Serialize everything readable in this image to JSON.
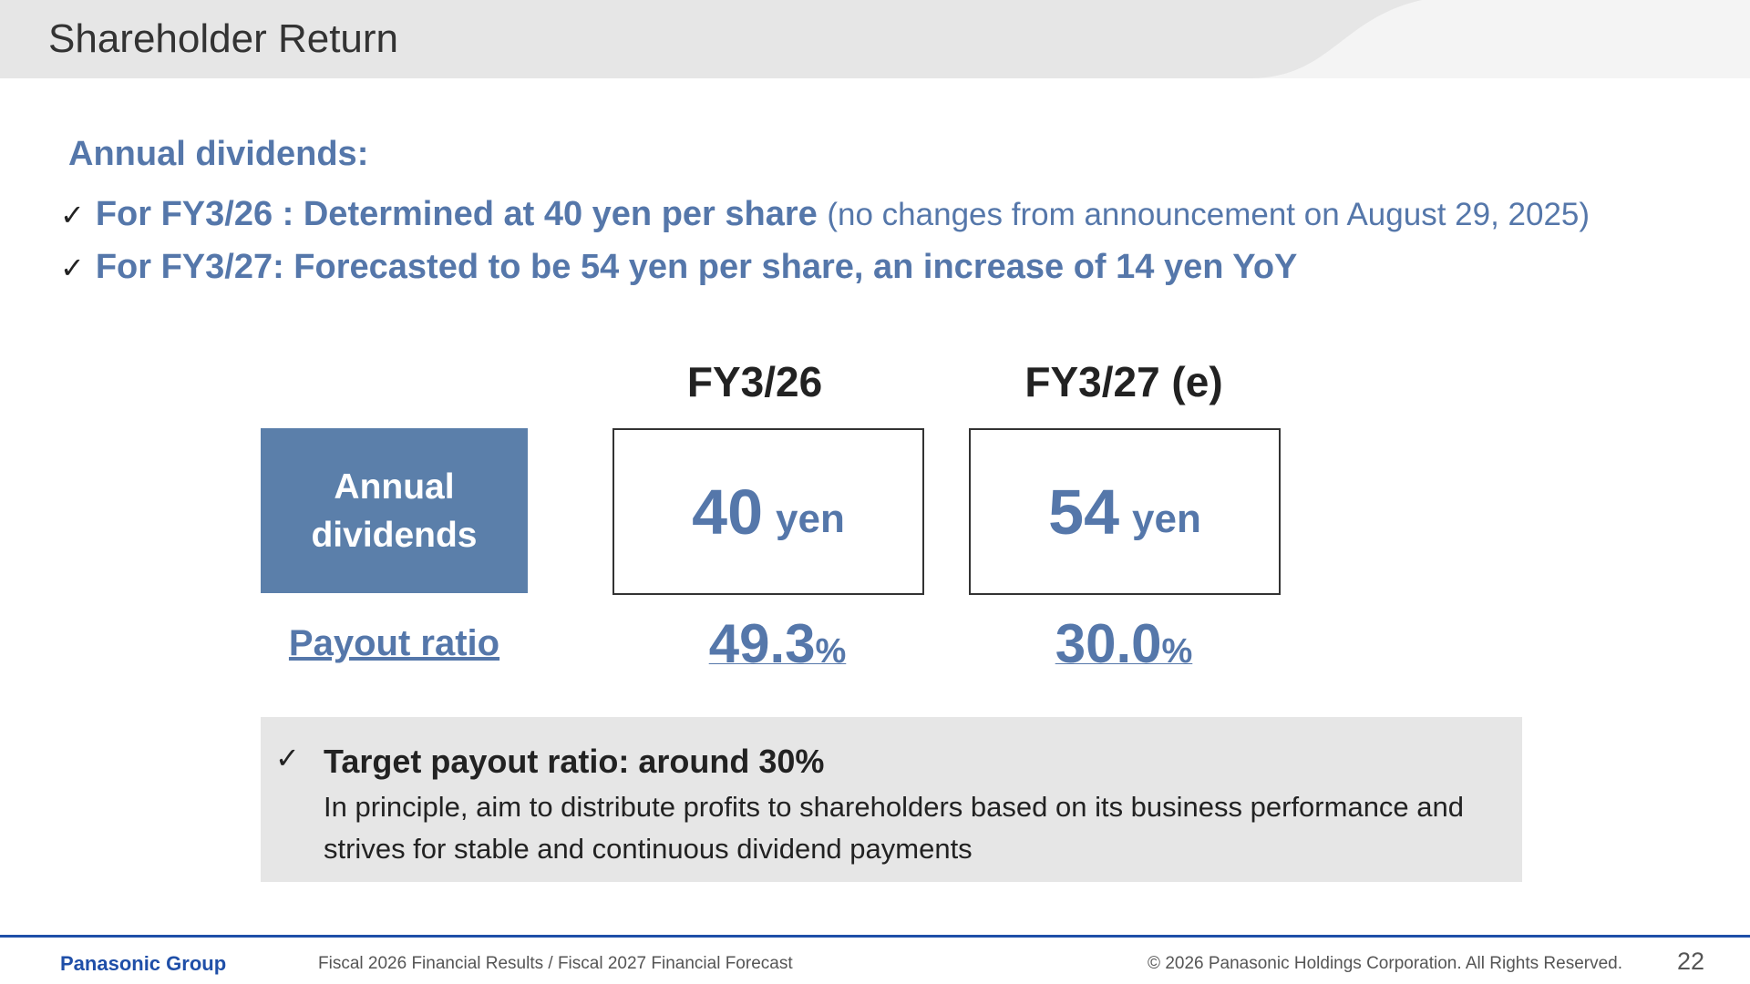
{
  "header": {
    "title": "Shareholder Return"
  },
  "section": {
    "subtitle": "Annual dividends:",
    "bullets": [
      {
        "check": "✓",
        "bold": "For FY3/26 : Determined at 40 yen per share",
        "note": "(no changes from announcement on August 29, 2025)"
      },
      {
        "check": "✓",
        "bold": "For FY3/27:  Forecasted to be 54 yen per share, an increase of 14 yen YoY",
        "note": ""
      }
    ]
  },
  "table": {
    "columns": [
      "FY3/26",
      "FY3/27 (e)"
    ],
    "row_label_line1": "Annual",
    "row_label_line2": "dividends",
    "dividends": [
      {
        "value": "40",
        "unit": "yen"
      },
      {
        "value": "54",
        "unit": "yen"
      }
    ],
    "payout_label": "Payout ratio",
    "payout": [
      {
        "value": "49.3",
        "unit": "%"
      },
      {
        "value": "30.0",
        "unit": "%"
      }
    ]
  },
  "policy": {
    "check": "✓",
    "title": "Target payout ratio: around 30%",
    "text": "In principle, aim to distribute profits to shareholders based on its business performance and strives for stable and continuous dividend payments"
  },
  "footer": {
    "logo": "Panasonic Group",
    "doc_title": "Fiscal 2026 Financial Results / Fiscal 2027 Financial Forecast",
    "copyright": "© 2026 Panasonic Holdings Corporation. All Rights Reserved.",
    "page": "22"
  },
  "colors": {
    "accent": "#5577aa",
    "label_box": "#5b7faa",
    "footer_blue": "#1f4fa8",
    "panel_gray": "#e6e6e6"
  }
}
